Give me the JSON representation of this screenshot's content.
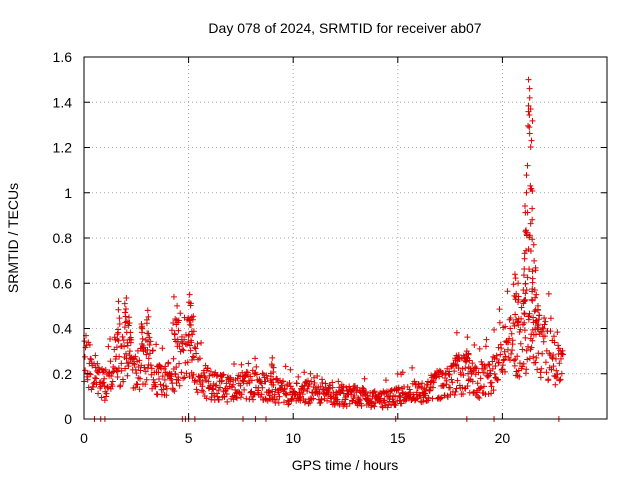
{
  "chart_data": {
    "type": "scatter",
    "title": "Day 078 of 2024, SRMTID for receiver ab07",
    "xlabel": "GPS time / hours",
    "ylabel": "SRMTID / TECUs",
    "xlim": [
      0,
      25
    ],
    "ylim": [
      0,
      1.6
    ],
    "xticks": [
      0,
      5,
      10,
      15,
      20
    ],
    "xtick_labels": [
      "0",
      "5",
      "10",
      "15",
      "20"
    ],
    "yticks": [
      0,
      0.2,
      0.4,
      0.6,
      0.8,
      1.0,
      1.2,
      1.4,
      1.6
    ],
    "ytick_labels": [
      "0",
      "0.2",
      "0.4",
      "0.6",
      "0.8",
      "1",
      "1.2",
      "1.4",
      "1.6"
    ],
    "grid": true,
    "marker": "+",
    "color": "#dd0000",
    "profile": [
      {
        "x": 0.0,
        "y": 0.26
      },
      {
        "x": 0.5,
        "y": 0.2
      },
      {
        "x": 1.0,
        "y": 0.15
      },
      {
        "x": 1.6,
        "y": 0.24
      },
      {
        "x": 2.0,
        "y": 0.3
      },
      {
        "x": 2.5,
        "y": 0.2
      },
      {
        "x": 3.0,
        "y": 0.28
      },
      {
        "x": 3.5,
        "y": 0.17
      },
      {
        "x": 4.0,
        "y": 0.17
      },
      {
        "x": 4.5,
        "y": 0.25
      },
      {
        "x": 5.0,
        "y": 0.27
      },
      {
        "x": 5.5,
        "y": 0.19
      },
      {
        "x": 6.0,
        "y": 0.15
      },
      {
        "x": 7.0,
        "y": 0.13
      },
      {
        "x": 8.0,
        "y": 0.15
      },
      {
        "x": 9.0,
        "y": 0.13
      },
      {
        "x": 10.0,
        "y": 0.11
      },
      {
        "x": 11.0,
        "y": 0.12
      },
      {
        "x": 12.0,
        "y": 0.1
      },
      {
        "x": 13.0,
        "y": 0.1
      },
      {
        "x": 14.0,
        "y": 0.08
      },
      {
        "x": 15.0,
        "y": 0.1
      },
      {
        "x": 16.0,
        "y": 0.12
      },
      {
        "x": 17.0,
        "y": 0.15
      },
      {
        "x": 18.0,
        "y": 0.2
      },
      {
        "x": 19.0,
        "y": 0.16
      },
      {
        "x": 19.6,
        "y": 0.2
      },
      {
        "x": 20.0,
        "y": 0.28
      },
      {
        "x": 20.5,
        "y": 0.32
      },
      {
        "x": 21.0,
        "y": 0.33
      },
      {
        "x": 21.5,
        "y": 0.35
      },
      {
        "x": 22.0,
        "y": 0.32
      },
      {
        "x": 22.5,
        "y": 0.25
      },
      {
        "x": 22.9,
        "y": 0.22
      }
    ],
    "peaks": [
      {
        "x": 1.65,
        "y": 0.52
      },
      {
        "x": 1.95,
        "y": 0.51
      },
      {
        "x": 2.15,
        "y": 0.45
      },
      {
        "x": 2.75,
        "y": 0.42
      },
      {
        "x": 3.05,
        "y": 0.48
      },
      {
        "x": 4.3,
        "y": 0.54
      },
      {
        "x": 4.45,
        "y": 0.5
      },
      {
        "x": 5.05,
        "y": 0.55
      },
      {
        "x": 5.15,
        "y": 0.45
      },
      {
        "x": 9.0,
        "y": 0.27
      },
      {
        "x": 17.8,
        "y": 0.28
      },
      {
        "x": 18.3,
        "y": 0.3
      },
      {
        "x": 20.6,
        "y": 0.64
      },
      {
        "x": 20.75,
        "y": 0.6
      },
      {
        "x": 21.0,
        "y": 0.57
      },
      {
        "x": 21.1,
        "y": 0.83
      },
      {
        "x": 21.15,
        "y": 1.0
      },
      {
        "x": 21.2,
        "y": 1.12
      },
      {
        "x": 21.25,
        "y": 1.5
      },
      {
        "x": 21.3,
        "y": 1.46
      },
      {
        "x": 21.35,
        "y": 1.37
      },
      {
        "x": 21.42,
        "y": 0.93
      },
      {
        "x": 21.5,
        "y": 0.77
      },
      {
        "x": 21.55,
        "y": 0.57
      },
      {
        "x": 21.7,
        "y": 0.5
      }
    ],
    "zero_points_x": [
      0.5,
      0.8,
      1.0,
      4.7,
      4.85,
      5.0,
      5.3,
      7.6,
      8.2,
      8.7,
      14.9,
      18.3,
      19.6,
      22.7
    ]
  }
}
